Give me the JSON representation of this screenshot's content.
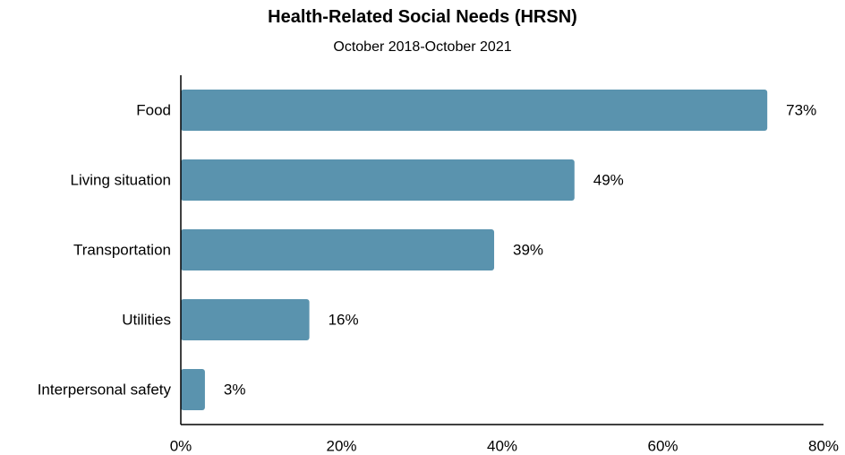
{
  "chart_data": {
    "type": "bar",
    "orientation": "horizontal",
    "title": "Health-Related Social Needs (HRSN)",
    "subtitle": "October 2018-October 2021",
    "xlabel": "",
    "ylabel": "",
    "categories": [
      "Food",
      "Living situation",
      "Transportation",
      "Utilities",
      "Interpersonal safety"
    ],
    "values": [
      73,
      49,
      39,
      16,
      3
    ],
    "value_labels": [
      "73%",
      "49%",
      "39%",
      "16%",
      "3%"
    ],
    "xlim": [
      0,
      80
    ],
    "x_ticks": [
      0,
      20,
      40,
      60,
      80
    ],
    "x_tick_labels": [
      "0%",
      "20%",
      "40%",
      "60%",
      "80%"
    ],
    "grid": false,
    "legend": "none",
    "bar_color": "#5a93ae",
    "axis_color": "#000000"
  }
}
